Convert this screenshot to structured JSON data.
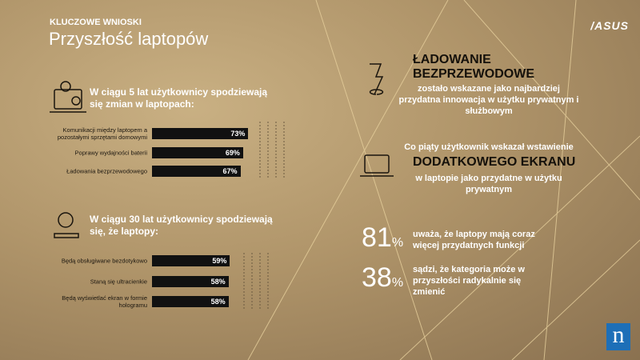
{
  "header": {
    "kicker": "KLUCZOWE WNIOSKI",
    "title": "Przyszłość laptopów",
    "brand": "/ASUS",
    "logo": "n"
  },
  "chart_data": [
    {
      "type": "bar",
      "orientation": "horizontal",
      "title": "W ciągu 5 lat użytkownicy spodziewają się zmian w laptopach:",
      "categories": [
        "Komunikacji między laptopem a pozostałymi sprzętami domowymi",
        "Poprawy wydajności baterii",
        "Ładowania bezprzewodowego"
      ],
      "values": [
        73,
        69,
        67
      ],
      "value_labels": [
        "73%",
        "69%",
        "67%"
      ],
      "color": "#111111",
      "xlim": [
        0,
        100
      ]
    },
    {
      "type": "bar",
      "orientation": "horizontal",
      "title": "W ciągu 30 lat użytkownicy spodziewają się, że laptopy:",
      "categories": [
        "Będą obsługiwane bezdotykowo",
        "Staną się ultracienkie",
        "Będą wyświetlać ekran w formie hologramu"
      ],
      "values": [
        59,
        58,
        58
      ],
      "value_labels": [
        "59%",
        "58%",
        "58%"
      ],
      "color": "#111111",
      "xlim": [
        0,
        100
      ]
    }
  ],
  "highlights": [
    {
      "heading": "ŁADOWANIE BEZPRZEWODOWE",
      "text": "zostało wskazane jako najbardziej przydatna innowacja w użytku prywatnym i służbowym"
    },
    {
      "intro": "Co piąty użytkownik wskazał wstawienie",
      "heading": "DODATKOWEGO EKRANU",
      "text": "w laptopie jako przydatne w użytku prywatnym"
    }
  ],
  "stats": [
    {
      "number": "81",
      "unit": "%",
      "text": "uważa, że laptopy mają coraz więcej przydatnych funkcji"
    },
    {
      "number": "38",
      "unit": "%",
      "text": "sądzi, że kategoria może w przyszłości radykalnie się zmienić"
    }
  ]
}
